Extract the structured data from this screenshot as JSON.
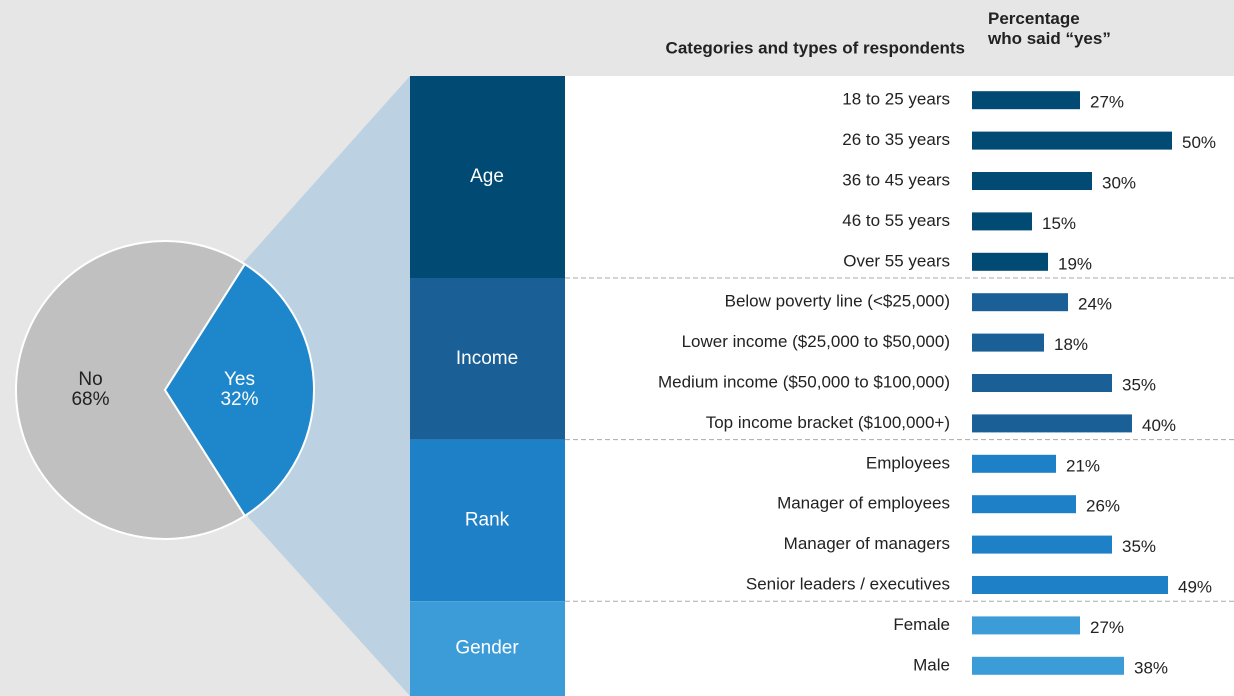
{
  "chart_data": [
    {
      "type": "pie",
      "categories": [
        "No",
        "Yes"
      ],
      "values": [
        68,
        32
      ],
      "value_labels": [
        "68%",
        "32%"
      ],
      "colors": [
        "#c0c0c0",
        "#1e87cc"
      ]
    },
    {
      "type": "bar",
      "orientation": "horizontal",
      "category_header": "Categories and types of respondents",
      "value_header": "Percentage\nwho said “yes”",
      "groups": [
        {
          "name": "Age",
          "color": "#004a73",
          "categories": [
            "18 to 25 years",
            "26 to 35 years",
            "36 to 45 years",
            "46 to 55 years",
            "Over 55 years"
          ],
          "values": [
            27,
            50,
            30,
            15,
            19
          ],
          "value_labels": [
            "27%",
            "50%",
            "30%",
            "15%",
            "19%"
          ]
        },
        {
          "name": "Income",
          "color": "#1a5f96",
          "categories": [
            "Below poverty line (<$25,000)",
            "Lower income ($25,000 to $50,000)",
            "Medium income ($50,000 to $100,000)",
            "Top income bracket ($100,000+)"
          ],
          "values": [
            24,
            18,
            35,
            40
          ],
          "value_labels": [
            "24%",
            "18%",
            "35%",
            "40%"
          ]
        },
        {
          "name": "Rank",
          "color": "#1e80c6",
          "categories": [
            "Employees",
            "Manager of employees",
            "Manager of managers",
            "Senior leaders / executives"
          ],
          "values": [
            21,
            26,
            35,
            49
          ],
          "value_labels": [
            "21%",
            "26%",
            "35%",
            "49%"
          ]
        },
        {
          "name": "Gender",
          "color": "#3c9cd8",
          "categories": [
            "Female",
            "Male"
          ],
          "values": [
            27,
            38
          ],
          "value_labels": [
            "27%",
            "38%"
          ]
        }
      ]
    }
  ]
}
